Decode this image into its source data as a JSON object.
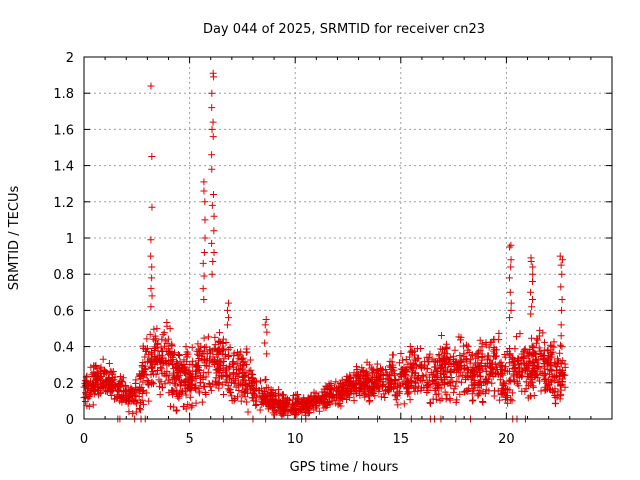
{
  "chart_data": {
    "type": "scatter",
    "title": "Day 044 of 2025, SRMTID for receiver cn23",
    "xlabel": "GPS time / hours",
    "ylabel": "SRMTID / TECUs",
    "xlim": [
      0,
      25
    ],
    "ylim": [
      0,
      2
    ],
    "xticks": [
      0,
      5,
      10,
      15,
      20
    ],
    "yticks": [
      0,
      0.2,
      0.4,
      0.6,
      0.8,
      1,
      1.2,
      1.4,
      1.6,
      1.8,
      2
    ],
    "grid": true,
    "marker": "+",
    "marker_color": "#e00000",
    "zero_markers_x": [
      1.6,
      1.7,
      2.4,
      2.7,
      2.9,
      5.0,
      6.6,
      8.0,
      8.6,
      10.3,
      10.5,
      13.9,
      15.5,
      16.4,
      16.6,
      16.9,
      17.6,
      18.3,
      20.3,
      20.5,
      20.9
    ],
    "spikes": [
      {
        "x": 3.2,
        "y": [
          1.84,
          1.45,
          1.17,
          0.99,
          0.9,
          0.84,
          0.78,
          0.72,
          0.68,
          0.62
        ]
      },
      {
        "x": 6.1,
        "y": [
          1.91,
          1.89,
          1.8,
          1.72,
          1.64,
          1.6,
          1.56,
          1.46,
          1.38,
          1.24,
          1.18,
          1.12,
          1.04,
          0.97,
          0.92,
          0.87,
          0.8
        ]
      },
      {
        "x": 5.7,
        "y": [
          1.31,
          1.26,
          1.2,
          1.1,
          1.0,
          0.92,
          0.86,
          0.79,
          0.72,
          0.66
        ]
      },
      {
        "x": 20.2,
        "y": [
          0.96,
          0.95,
          0.88,
          0.84,
          0.78,
          0.7,
          0.64,
          0.6,
          0.56
        ]
      },
      {
        "x": 21.2,
        "y": [
          0.89,
          0.87,
          0.84,
          0.8,
          0.76,
          0.7,
          0.66,
          0.62,
          0.58
        ]
      },
      {
        "x": 22.6,
        "y": [
          0.9,
          0.88,
          0.85,
          0.8,
          0.73,
          0.66,
          0.6,
          0.52,
          0.46,
          0.4
        ]
      },
      {
        "x": 8.6,
        "y": [
          0.55,
          0.52,
          0.48,
          0.42,
          0.36
        ]
      },
      {
        "x": 6.8,
        "y": [
          0.64,
          0.6,
          0.56,
          0.52
        ]
      }
    ],
    "baseline": [
      {
        "x": 0.0,
        "y": 0.15
      },
      {
        "x": 0.5,
        "y": 0.2
      },
      {
        "x": 1.0,
        "y": 0.22
      },
      {
        "x": 1.5,
        "y": 0.18
      },
      {
        "x": 2.0,
        "y": 0.14
      },
      {
        "x": 2.5,
        "y": 0.12
      },
      {
        "x": 3.0,
        "y": 0.3
      },
      {
        "x": 3.5,
        "y": 0.35
      },
      {
        "x": 4.0,
        "y": 0.3
      },
      {
        "x": 4.5,
        "y": 0.22
      },
      {
        "x": 5.0,
        "y": 0.2
      },
      {
        "x": 5.5,
        "y": 0.28
      },
      {
        "x": 6.0,
        "y": 0.3
      },
      {
        "x": 6.5,
        "y": 0.32
      },
      {
        "x": 7.0,
        "y": 0.26
      },
      {
        "x": 7.5,
        "y": 0.25
      },
      {
        "x": 8.0,
        "y": 0.16
      },
      {
        "x": 8.5,
        "y": 0.14
      },
      {
        "x": 9.0,
        "y": 0.1
      },
      {
        "x": 9.5,
        "y": 0.08
      },
      {
        "x": 10.0,
        "y": 0.07
      },
      {
        "x": 10.5,
        "y": 0.08
      },
      {
        "x": 11.0,
        "y": 0.1
      },
      {
        "x": 11.5,
        "y": 0.12
      },
      {
        "x": 12.0,
        "y": 0.14
      },
      {
        "x": 12.5,
        "y": 0.18
      },
      {
        "x": 13.0,
        "y": 0.2
      },
      {
        "x": 13.5,
        "y": 0.2
      },
      {
        "x": 14.0,
        "y": 0.22
      },
      {
        "x": 14.5,
        "y": 0.22
      },
      {
        "x": 15.0,
        "y": 0.22
      },
      {
        "x": 15.5,
        "y": 0.26
      },
      {
        "x": 16.0,
        "y": 0.24
      },
      {
        "x": 16.5,
        "y": 0.22
      },
      {
        "x": 17.0,
        "y": 0.26
      },
      {
        "x": 17.5,
        "y": 0.28
      },
      {
        "x": 18.0,
        "y": 0.3
      },
      {
        "x": 18.5,
        "y": 0.24
      },
      {
        "x": 19.0,
        "y": 0.3
      },
      {
        "x": 19.5,
        "y": 0.28
      },
      {
        "x": 20.0,
        "y": 0.24
      },
      {
        "x": 20.5,
        "y": 0.3
      },
      {
        "x": 21.0,
        "y": 0.26
      },
      {
        "x": 21.5,
        "y": 0.32
      },
      {
        "x": 22.0,
        "y": 0.26
      },
      {
        "x": 22.5,
        "y": 0.24
      },
      {
        "x": 22.8,
        "y": 0.22
      }
    ],
    "noise_spread": [
      {
        "x": 0.0,
        "s": 0.08
      },
      {
        "x": 2.0,
        "s": 0.06
      },
      {
        "x": 3.0,
        "s": 0.15
      },
      {
        "x": 5.0,
        "s": 0.14
      },
      {
        "x": 7.5,
        "s": 0.14
      },
      {
        "x": 8.5,
        "s": 0.06
      },
      {
        "x": 11.0,
        "s": 0.04
      },
      {
        "x": 13.0,
        "s": 0.07
      },
      {
        "x": 16.0,
        "s": 0.12
      },
      {
        "x": 18.0,
        "s": 0.14
      },
      {
        "x": 20.0,
        "s": 0.14
      },
      {
        "x": 22.8,
        "s": 0.12
      }
    ],
    "sample_count": 2200
  }
}
